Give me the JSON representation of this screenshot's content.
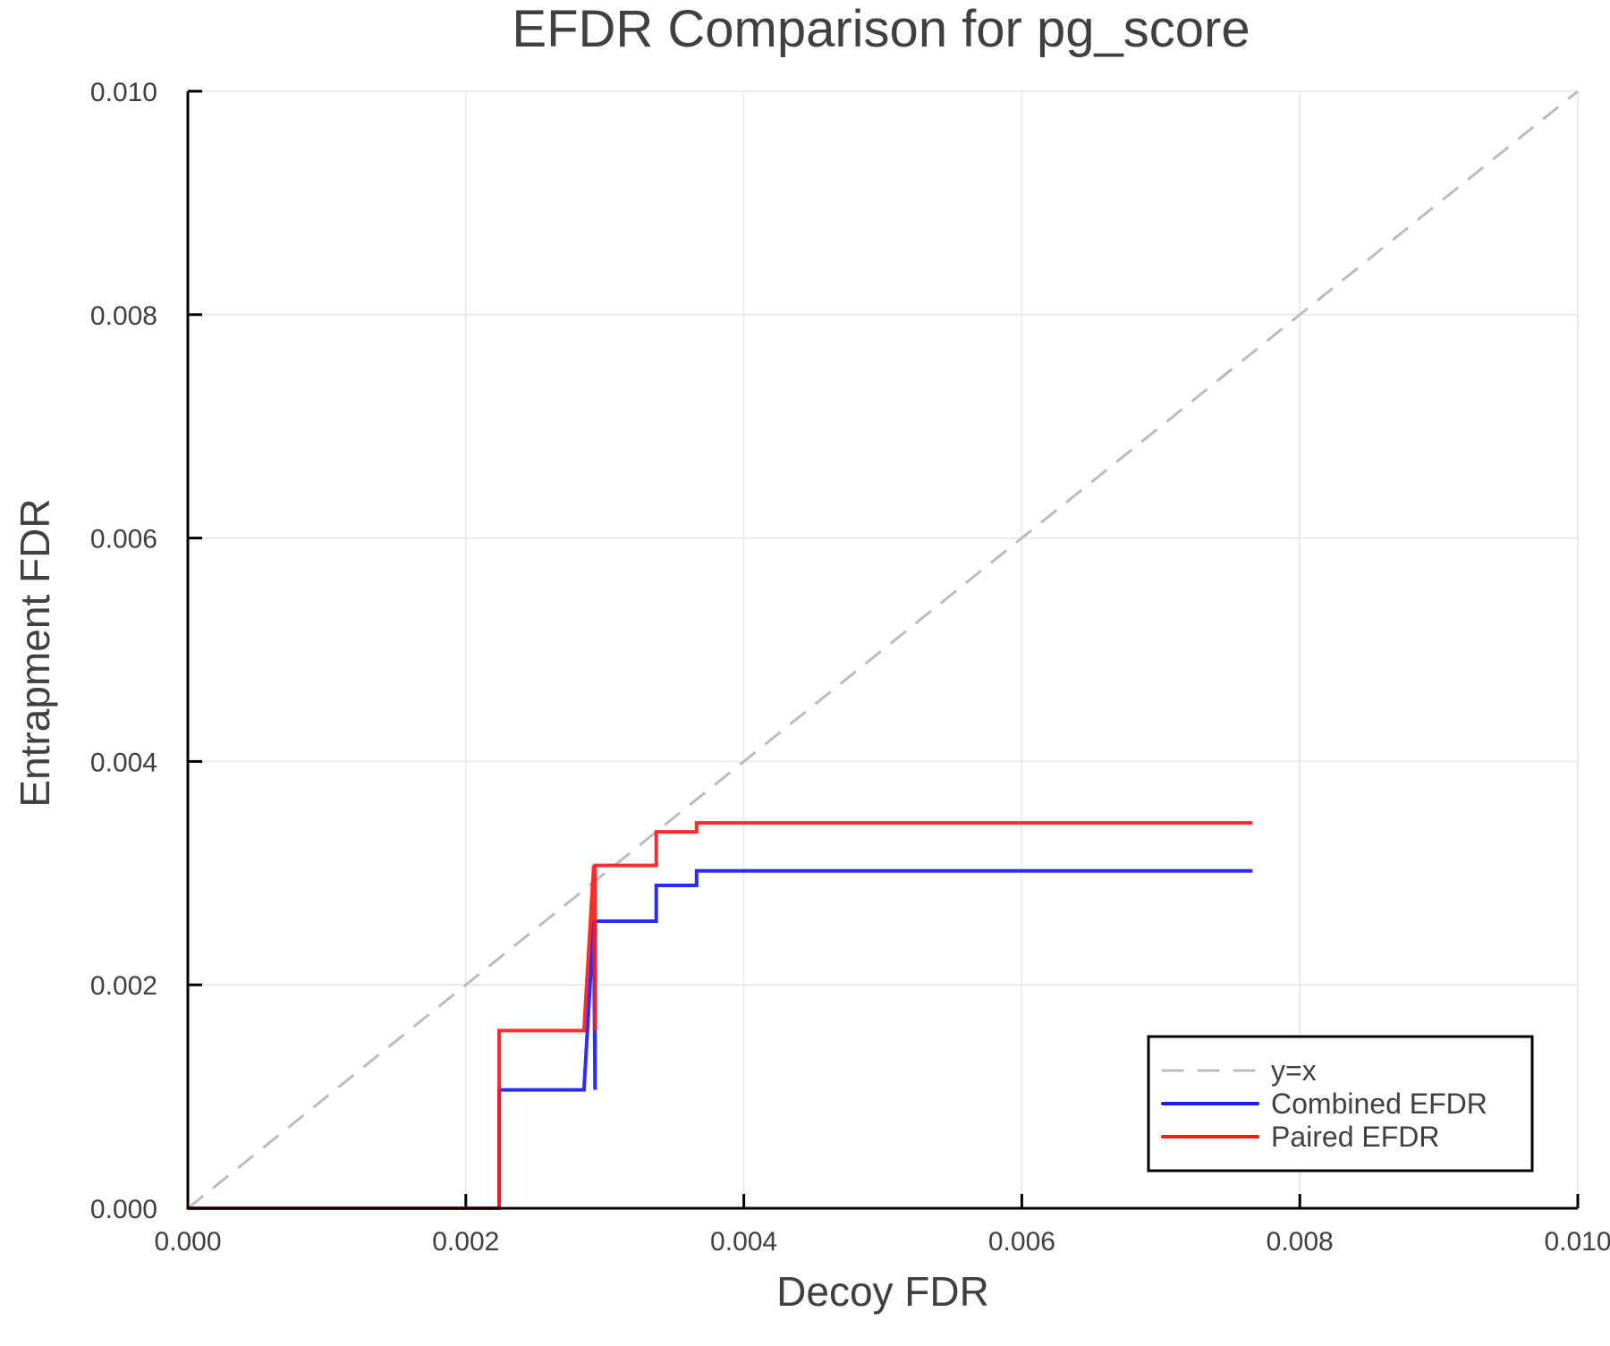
{
  "chart_data": {
    "type": "line",
    "title": "EFDR Comparison for pg_score",
    "xlabel": "Decoy FDR",
    "ylabel": "Entrapment FDR",
    "xlim": [
      0.0,
      0.01
    ],
    "ylim": [
      0.0,
      0.01
    ],
    "xticks": [
      "0.000",
      "0.002",
      "0.004",
      "0.006",
      "0.008",
      "0.010"
    ],
    "yticks": [
      "0.000",
      "0.002",
      "0.004",
      "0.006",
      "0.008",
      "0.010"
    ],
    "grid": true,
    "legend_position": "bottom-right",
    "series": [
      {
        "name": "y=x",
        "color": "#bdbdbd",
        "style": "dashed",
        "x": [
          0.0,
          0.01
        ],
        "y": [
          0.0,
          0.01
        ]
      },
      {
        "name": "Combined EFDR",
        "color": "#1a1aff",
        "style": "solid",
        "x": [
          0.0,
          0.00224,
          0.00224,
          0.00285,
          0.00292,
          0.00293,
          0.00293,
          0.00337,
          0.00337,
          0.00366,
          0.00366,
          0.00766
        ],
        "y": [
          0.0,
          0.0,
          0.00106,
          0.00106,
          0.00257,
          0.00106,
          0.00257,
          0.00257,
          0.00289,
          0.00289,
          0.00302,
          0.00302
        ]
      },
      {
        "name": "Paired EFDR",
        "color": "#ff1a1a",
        "style": "solid",
        "x": [
          0.0,
          0.00224,
          0.00224,
          0.00285,
          0.00292,
          0.00293,
          0.00293,
          0.00337,
          0.00337,
          0.00366,
          0.00366,
          0.00766
        ],
        "y": [
          0.0,
          0.0,
          0.00159,
          0.00159,
          0.00307,
          0.00159,
          0.00307,
          0.00307,
          0.00337,
          0.00337,
          0.00345,
          0.00345
        ]
      }
    ]
  },
  "legend": {
    "items": [
      {
        "label": "y=x",
        "color": "#bdbdbd",
        "style": "dashed"
      },
      {
        "label": "Combined EFDR",
        "color": "#1a1aff",
        "style": "solid"
      },
      {
        "label": "Paired EFDR",
        "color": "#ff1a1a",
        "style": "solid"
      }
    ]
  }
}
